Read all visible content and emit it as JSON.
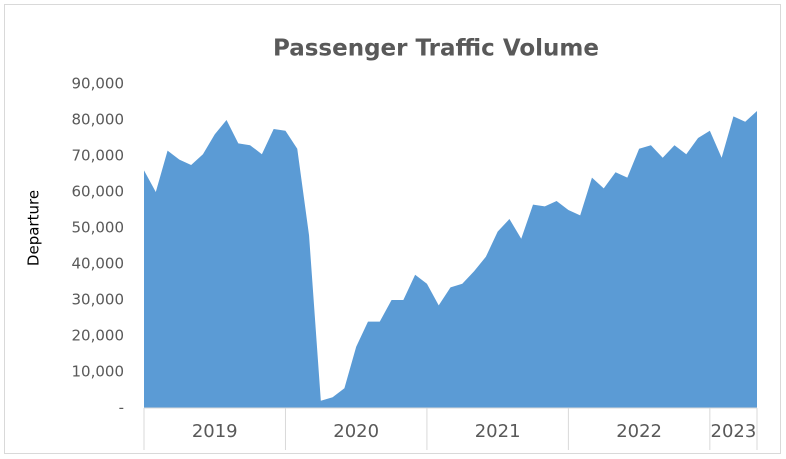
{
  "chart_data": {
    "type": "area",
    "title": "Passenger Traffic Volume",
    "y_label": "Departure",
    "categories": [
      "2019",
      null,
      null,
      null,
      null,
      null,
      null,
      null,
      null,
      null,
      null,
      null,
      "2020",
      null,
      null,
      null,
      null,
      null,
      null,
      null,
      null,
      null,
      null,
      null,
      "2021",
      null,
      null,
      null,
      null,
      null,
      null,
      null,
      null,
      null,
      null,
      null,
      "2022",
      null,
      null,
      null,
      null,
      null,
      null,
      null,
      null,
      null,
      null,
      null,
      "2023",
      null,
      null,
      null,
      null
    ],
    "series": [
      {
        "name": "Departure",
        "color": "#5b9bd5",
        "values": [
          66000,
          60000,
          71500,
          69000,
          67500,
          70500,
          76000,
          80000,
          73500,
          73000,
          70500,
          77500,
          77000,
          72000,
          48000,
          2000,
          3000,
          5500,
          17000,
          24000,
          24000,
          30000,
          30000,
          37000,
          34500,
          28500,
          33500,
          34500,
          38000,
          42000,
          49000,
          52500,
          47000,
          56500,
          56000,
          57500,
          55000,
          53500,
          64000,
          61000,
          65500,
          64000,
          72000,
          73000,
          69500,
          73000,
          70500,
          75000,
          77000,
          69500,
          81000,
          79500,
          82500
        ]
      }
    ],
    "ylim": [
      0,
      90000
    ],
    "yticks": [
      {
        "value": 0,
        "label": "-"
      },
      {
        "value": 10000,
        "label": "10,000"
      },
      {
        "value": 20000,
        "label": "20,000"
      },
      {
        "value": 30000,
        "label": "30,000"
      },
      {
        "value": 40000,
        "label": "40,000"
      },
      {
        "value": 50000,
        "label": "50,000"
      },
      {
        "value": 60000,
        "label": "60,000"
      },
      {
        "value": 70000,
        "label": "70,000"
      },
      {
        "value": 80000,
        "label": "80,000"
      },
      {
        "value": 90000,
        "label": "90,000"
      }
    ],
    "grid": false
  }
}
